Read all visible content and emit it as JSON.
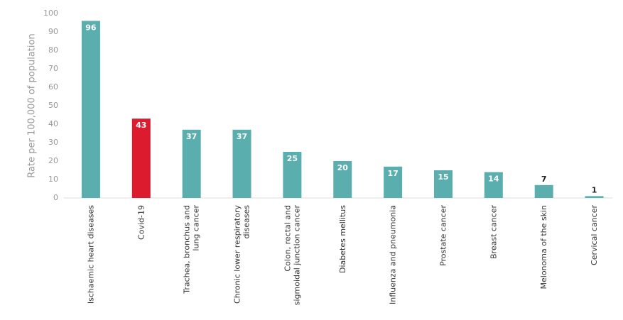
{
  "chart_data": {
    "type": "bar",
    "y_label": "Rate per 100,000 of population",
    "categories": [
      "Ischaemic heart diseases",
      "Covid-19",
      "Trachea, bronchus and lung cancer",
      "Chronic lower respiratory diseases",
      "Colon, rectal and sigmoidal junction cancer",
      "Diabetes mellitus",
      "Influenza and pneumonia",
      "Prostate cancer",
      "Breast cancer",
      "Melonoma of the skin",
      "Cervical cancer"
    ],
    "values": [
      96,
      43,
      37,
      37,
      25,
      20,
      17,
      15,
      14,
      7,
      1
    ],
    "colors": [
      "#5aafae",
      "#dc1c2e",
      "#5aafae",
      "#5aafae",
      "#5aafae",
      "#5aafae",
      "#5aafae",
      "#5aafae",
      "#5aafae",
      "#5aafae",
      "#5aafae"
    ],
    "ylim": [
      0,
      100
    ],
    "yticks": [
      0,
      10,
      20,
      30,
      40,
      50,
      60,
      70,
      80,
      90,
      100
    ],
    "grid": false
  }
}
